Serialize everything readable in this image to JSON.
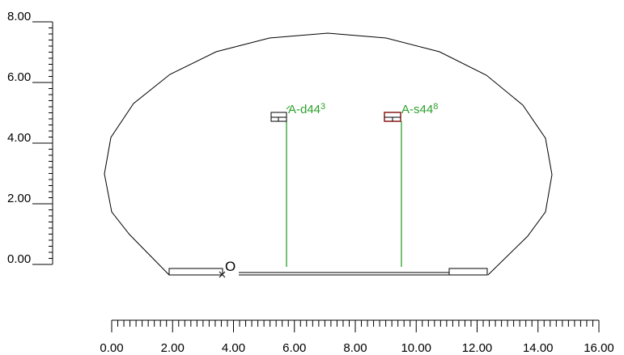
{
  "colors": {
    "outline": "#000000",
    "green": "#2ca02c",
    "dark_red": "#8b1a1a"
  },
  "vertical_axis": {
    "ticks": [
      "0.00",
      "2.00",
      "4.00",
      "6.00",
      "8.00"
    ]
  },
  "horizontal_axis": {
    "ticks": [
      "0.00",
      "2.00",
      "4.00",
      "6.00",
      "8.00",
      "10.00",
      "12.00",
      "14.00",
      "16.00"
    ]
  },
  "origin": {
    "label": "O"
  },
  "markers": [
    {
      "label": "A-d44",
      "superscript": "3"
    },
    {
      "label": "A-s44",
      "superscript": "8"
    }
  ]
}
